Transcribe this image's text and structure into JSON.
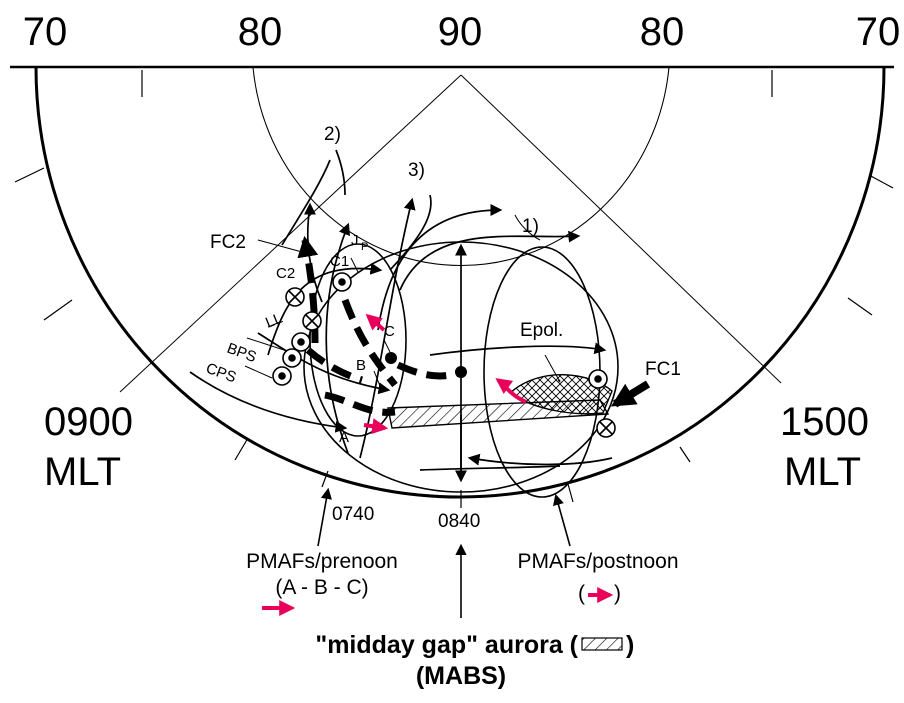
{
  "latitude_ticks": [
    "70",
    "80",
    "90",
    "80",
    "70"
  ],
  "mlt_left": [
    "0900",
    "MLT"
  ],
  "mlt_right": [
    "1500",
    "MLT"
  ],
  "labels": {
    "fc2": "FC2",
    "fc1": "FC1",
    "c2": "C2",
    "c1": "C1",
    "jp": "J",
    "jp_sub": "P",
    "ll": "LL",
    "bps": "BPS",
    "cps": "CPS",
    "c": "C",
    "b": "B",
    "a": "A",
    "epol": "Epol.",
    "line_2": "2)",
    "line_3": "3)",
    "line_1": "1)"
  },
  "times": {
    "t0740": "0740",
    "t0840": "0840"
  },
  "captions": {
    "prenoon_title": "PMAFs/prenoon",
    "prenoon_seq": "(A - B - C)",
    "postnoon_title": "PMAFs/postnoon",
    "postnoon_open": "(",
    "postnoon_close": ")",
    "midday_gap_pre": "\"midday gap\" aurora (",
    "midday_gap_post": ")",
    "mabs": "(MABS)"
  },
  "colors": {
    "ink": "#000000",
    "accent": "#e8005a"
  }
}
